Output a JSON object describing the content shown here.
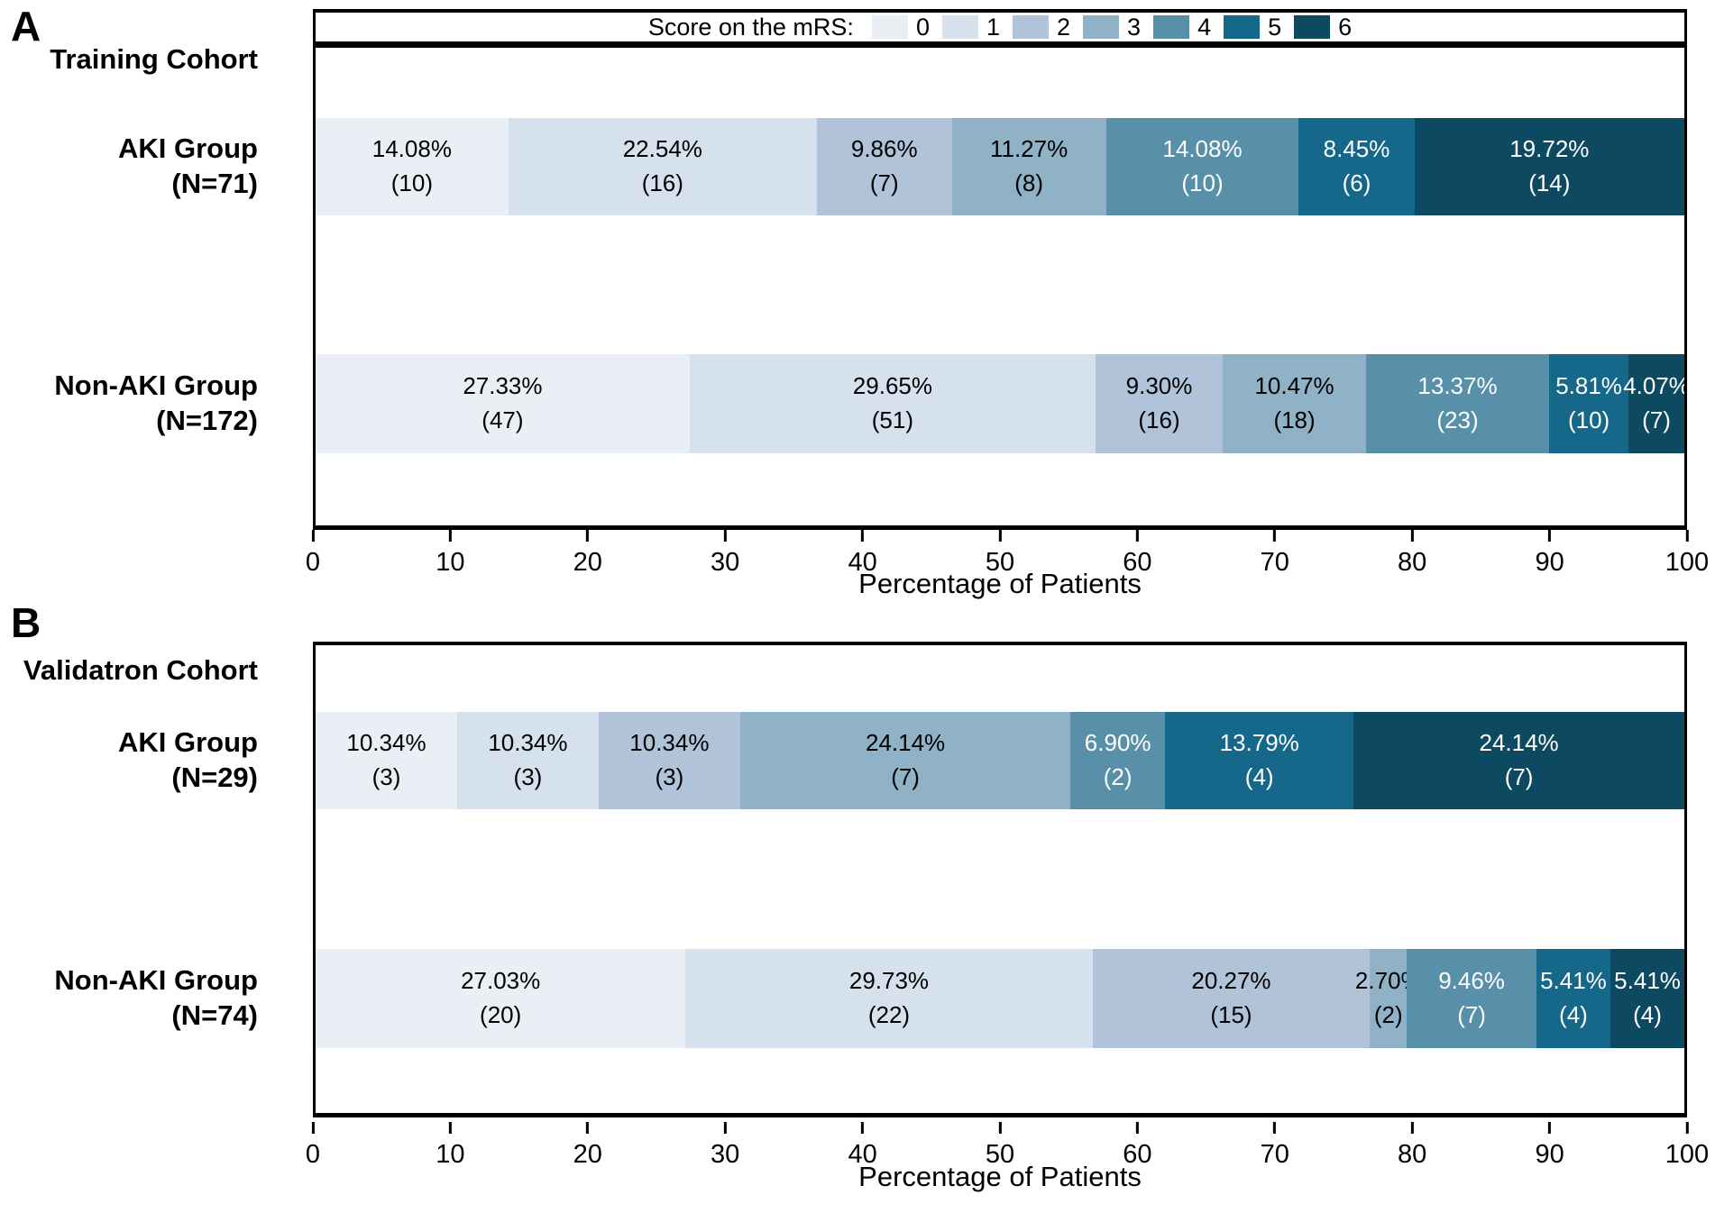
{
  "chart_data": {
    "type": "stacked-bar-horizontal",
    "legend_title": "Score on the mRS:",
    "legend_entries": [
      "0",
      "1",
      "2",
      "3",
      "4",
      "5",
      "6"
    ],
    "colors": [
      "#e9eff5",
      "#d5e1ec",
      "#b0c3d8",
      "#8fb2c7",
      "#5890a9",
      "#15688a",
      "#0d4a61"
    ],
    "text_colors": [
      "#000000",
      "#000000",
      "#000000",
      "#000000",
      "#ffffff",
      "#ffffff",
      "#ffffff"
    ],
    "xlabel": "Percentage of Patients",
    "xlim": [
      0,
      100
    ],
    "xticks": [
      "0",
      "10",
      "20",
      "30",
      "40",
      "50",
      "60",
      "70",
      "80",
      "90",
      "100"
    ],
    "grid": false,
    "legend_position": "top",
    "panels": [
      {
        "label": "A",
        "title": "Training Cohort",
        "rows": [
          {
            "group": "AKI Group",
            "n": "(N=71)",
            "segments": [
              {
                "score": "0",
                "pct": 14.08,
                "pct_label": "14.08%",
                "count": 10,
                "count_label": "(10)"
              },
              {
                "score": "1",
                "pct": 22.54,
                "pct_label": "22.54%",
                "count": 16,
                "count_label": "(16)"
              },
              {
                "score": "2",
                "pct": 9.86,
                "pct_label": "9.86%",
                "count": 7,
                "count_label": "(7)"
              },
              {
                "score": "3",
                "pct": 11.27,
                "pct_label": "11.27%",
                "count": 8,
                "count_label": "(8)"
              },
              {
                "score": "4",
                "pct": 14.08,
                "pct_label": "14.08%",
                "count": 10,
                "count_label": "(10)"
              },
              {
                "score": "5",
                "pct": 8.45,
                "pct_label": "8.45%",
                "count": 6,
                "count_label": "(6)"
              },
              {
                "score": "6",
                "pct": 19.72,
                "pct_label": "19.72%",
                "count": 14,
                "count_label": "(14)"
              }
            ]
          },
          {
            "group": "Non-AKI Group",
            "n": "(N=172)",
            "segments": [
              {
                "score": "0",
                "pct": 27.33,
                "pct_label": "27.33%",
                "count": 47,
                "count_label": "(47)"
              },
              {
                "score": "1",
                "pct": 29.65,
                "pct_label": "29.65%",
                "count": 51,
                "count_label": "(51)"
              },
              {
                "score": "2",
                "pct": 9.3,
                "pct_label": "9.30%",
                "count": 16,
                "count_label": "(16)"
              },
              {
                "score": "3",
                "pct": 10.47,
                "pct_label": "10.47%",
                "count": 18,
                "count_label": "(18)"
              },
              {
                "score": "4",
                "pct": 13.37,
                "pct_label": "13.37%",
                "count": 23,
                "count_label": "(23)"
              },
              {
                "score": "5",
                "pct": 5.81,
                "pct_label": "5.81%",
                "count": 10,
                "count_label": "(10)"
              },
              {
                "score": "6",
                "pct": 4.07,
                "pct_label": "4.07%",
                "count": 7,
                "count_label": "(7)"
              }
            ]
          }
        ]
      },
      {
        "label": "B",
        "title": "Validatron Cohort",
        "rows": [
          {
            "group": "AKI Group",
            "n": "(N=29)",
            "segments": [
              {
                "score": "0",
                "pct": 10.34,
                "pct_label": "10.34%",
                "count": 3,
                "count_label": "(3)"
              },
              {
                "score": "1",
                "pct": 10.34,
                "pct_label": "10.34%",
                "count": 3,
                "count_label": "(3)"
              },
              {
                "score": "2",
                "pct": 10.34,
                "pct_label": "10.34%",
                "count": 3,
                "count_label": "(3)"
              },
              {
                "score": "3",
                "pct": 24.14,
                "pct_label": "24.14%",
                "count": 7,
                "count_label": "(7)"
              },
              {
                "score": "4",
                "pct": 6.9,
                "pct_label": "6.90%",
                "count": 2,
                "count_label": "(2)"
              },
              {
                "score": "5",
                "pct": 13.79,
                "pct_label": "13.79%",
                "count": 4,
                "count_label": "(4)"
              },
              {
                "score": "6",
                "pct": 24.14,
                "pct_label": "24.14%",
                "count": 7,
                "count_label": "(7)"
              }
            ]
          },
          {
            "group": "Non-AKI Group",
            "n": "(N=74)",
            "segments": [
              {
                "score": "0",
                "pct": 27.03,
                "pct_label": "27.03%",
                "count": 20,
                "count_label": "(20)"
              },
              {
                "score": "1",
                "pct": 29.73,
                "pct_label": "29.73%",
                "count": 22,
                "count_label": "(22)"
              },
              {
                "score": "2",
                "pct": 20.27,
                "pct_label": "20.27%",
                "count": 15,
                "count_label": "(15)"
              },
              {
                "score": "3",
                "pct": 2.7,
                "pct_label": "2.70%",
                "count": 2,
                "count_label": "(2)"
              },
              {
                "score": "4",
                "pct": 9.46,
                "pct_label": "9.46%",
                "count": 7,
                "count_label": "(7)"
              },
              {
                "score": "5",
                "pct": 5.41,
                "pct_label": "5.41%",
                "count": 4,
                "count_label": "(4)"
              },
              {
                "score": "6",
                "pct": 5.41,
                "pct_label": "5.41%",
                "count": 4,
                "count_label": "(4)"
              }
            ]
          }
        ]
      }
    ]
  }
}
